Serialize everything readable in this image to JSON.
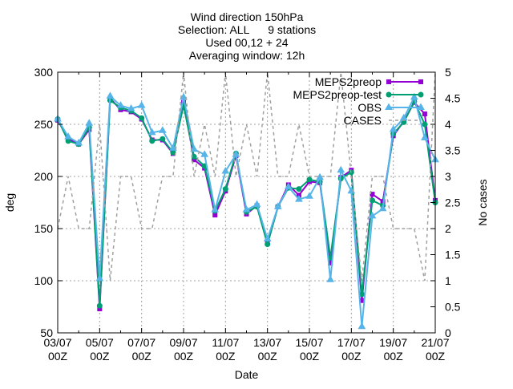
{
  "chart_data": {
    "type": "line",
    "title_lines": [
      "Wind direction 150hPa",
      "Selection: ALL      9 stations",
      "Used 00,12 + 24",
      "Averaging window: 12h"
    ],
    "xlabel": "Date",
    "ylabel": "deg",
    "y2label": "No cases",
    "x_range_days": [
      3,
      21
    ],
    "ylim": [
      50,
      300
    ],
    "y2lim": [
      0,
      5
    ],
    "yticks": [
      50,
      100,
      150,
      200,
      250,
      300
    ],
    "y2ticks": [
      0,
      0.5,
      1,
      1.5,
      2,
      2.5,
      3,
      3.5,
      4,
      4.5,
      5
    ],
    "y2tick_labels": [
      "0",
      "0.5",
      "1",
      "1.5",
      "2",
      "2.5",
      "3",
      "3.5",
      "4",
      "4.5",
      "5"
    ],
    "xticks": [
      {
        "day": 3,
        "date": "03/07",
        "hour": "00Z"
      },
      {
        "day": 5,
        "date": "05/07",
        "hour": "00Z"
      },
      {
        "day": 7,
        "date": "07/07",
        "hour": "00Z"
      },
      {
        "day": 9,
        "date": "09/07",
        "hour": "00Z"
      },
      {
        "day": 11,
        "date": "11/07",
        "hour": "00Z"
      },
      {
        "day": 13,
        "date": "13/07",
        "hour": "00Z"
      },
      {
        "day": 15,
        "date": "15/07",
        "hour": "00Z"
      },
      {
        "day": 17,
        "date": "17/07",
        "hour": "00Z"
      },
      {
        "day": 19,
        "date": "19/07",
        "hour": "00Z"
      },
      {
        "day": 21,
        "date": "21/07",
        "hour": "00Z"
      }
    ],
    "grid": true,
    "legend_position": "top-right",
    "x": [
      3,
      3.5,
      4,
      4.5,
      5,
      5.5,
      6,
      6.5,
      7,
      7.5,
      8,
      8.5,
      9,
      9.5,
      10,
      10.5,
      11,
      11.5,
      12,
      12.5,
      13,
      13.5,
      14,
      14.5,
      15,
      15.5,
      16,
      16.5,
      17,
      17.5,
      18,
      18.5,
      19,
      19.5,
      20,
      20.5,
      21
    ],
    "series": [
      {
        "name": "MEPS2preop",
        "color": "#9400d3",
        "marker": "filled-square",
        "axis": "y",
        "values": [
          254,
          236,
          231,
          245,
          73,
          275,
          264,
          262,
          255,
          235,
          235,
          222,
          271,
          216,
          208,
          163,
          186,
          220,
          164,
          172,
          136,
          171,
          192,
          182,
          195,
          194,
          117,
          199,
          206,
          81,
          183,
          176,
          239,
          253,
          271,
          260,
          177
        ]
      },
      {
        "name": "MEPS2preop-test",
        "color": "#009e73",
        "marker": "filled-circle",
        "axis": "y",
        "values": [
          255,
          234,
          231,
          247,
          76,
          273,
          266,
          263,
          256,
          234,
          236,
          223,
          268,
          219,
          210,
          167,
          188,
          222,
          166,
          171,
          135,
          171,
          189,
          188,
          197,
          195,
          122,
          198,
          204,
          87,
          177,
          172,
          241,
          252,
          272,
          250,
          175
        ]
      },
      {
        "name": "OBS",
        "color": "#56b4e9",
        "marker": "open-triangle",
        "axis": "y",
        "values": [
          255,
          238,
          232,
          251,
          102,
          277,
          268,
          265,
          268,
          242,
          244,
          227,
          276,
          226,
          221,
          168,
          205,
          221,
          168,
          173,
          140,
          171,
          190,
          178,
          181,
          199,
          101,
          206,
          186,
          56,
          162,
          169,
          245,
          256,
          276,
          237,
          216
        ]
      },
      {
        "name": "CASES",
        "color": "#a0a0a0",
        "marker": "none",
        "dash": true,
        "axis": "y2",
        "values": [
          2,
          3,
          2,
          2,
          4,
          1,
          3,
          3,
          2,
          2,
          3,
          3,
          5,
          3,
          4,
          3,
          5,
          3,
          4,
          3,
          5,
          3,
          3,
          4,
          3,
          3,
          3,
          5,
          3,
          1,
          3,
          3,
          2,
          2,
          2,
          1,
          5
        ]
      }
    ]
  }
}
